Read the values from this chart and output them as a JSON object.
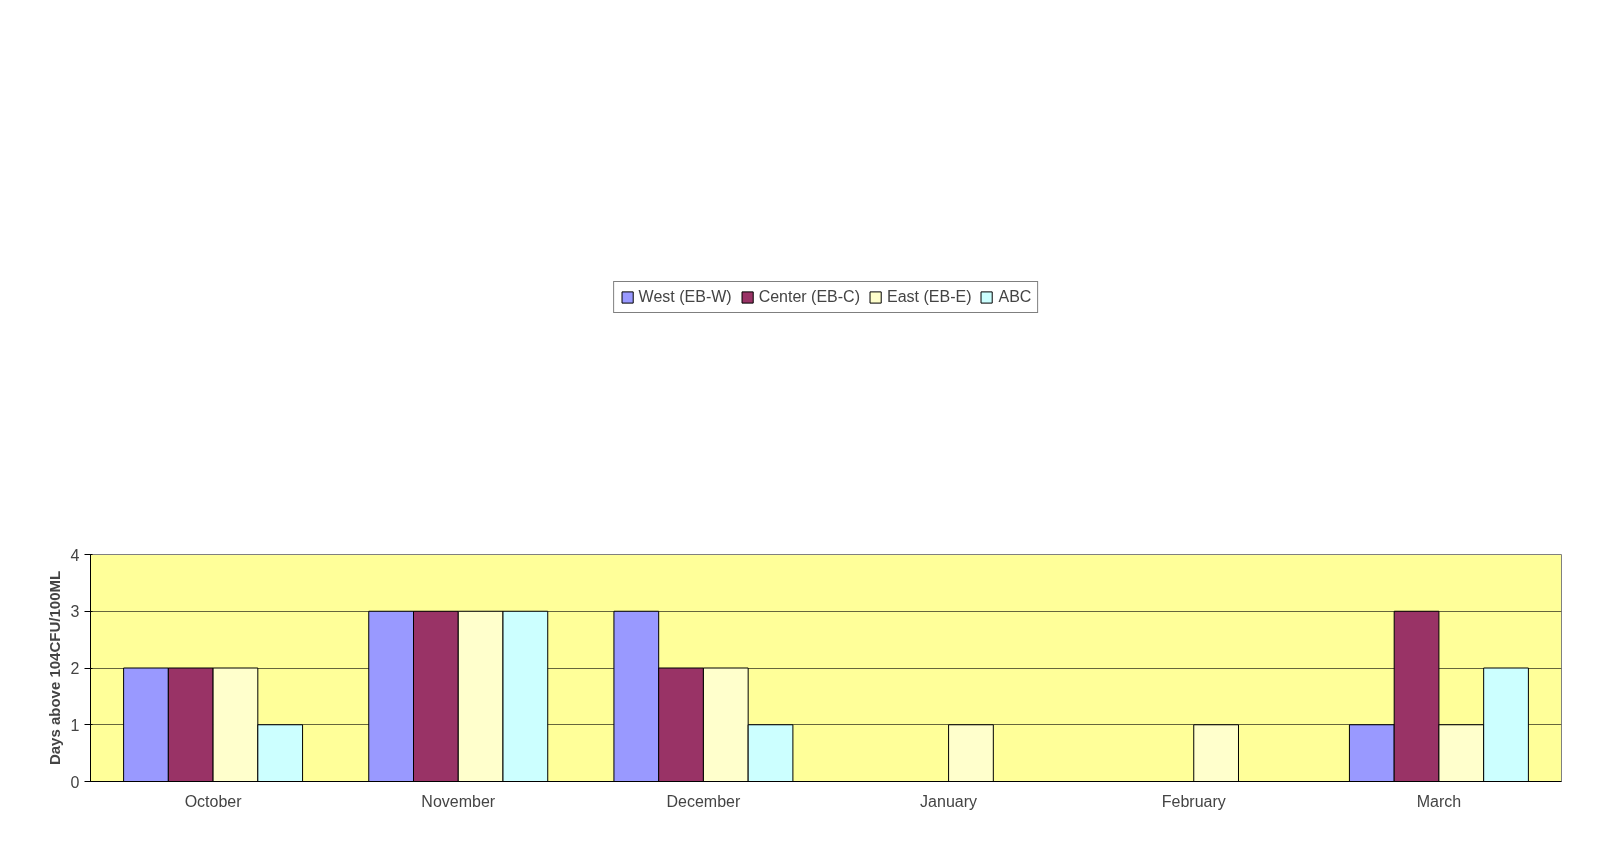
{
  "chart_data": {
    "type": "bar",
    "ylabel": "Days above 104CFU/100ML",
    "categories": [
      "October",
      "November",
      "December",
      "January",
      "February",
      "March"
    ],
    "series": [
      {
        "name": "West (EB-W)",
        "color": "#9999ff",
        "values": [
          2,
          3,
          3,
          0,
          0,
          1
        ]
      },
      {
        "name": "Center (EB-C)",
        "color": "#993366",
        "values": [
          2,
          3,
          2,
          0,
          0,
          3
        ]
      },
      {
        "name": "East (EB-E)",
        "color": "#ffffcc",
        "values": [
          2,
          3,
          2,
          1,
          1,
          1
        ]
      },
      {
        "name": "ABC",
        "color": "#ccffff",
        "values": [
          1,
          3,
          1,
          0,
          0,
          2
        ]
      }
    ],
    "ylim": [
      0,
      4
    ],
    "yticks": [
      0,
      1,
      2,
      3,
      4
    ],
    "grid": "y",
    "legend": "top"
  }
}
